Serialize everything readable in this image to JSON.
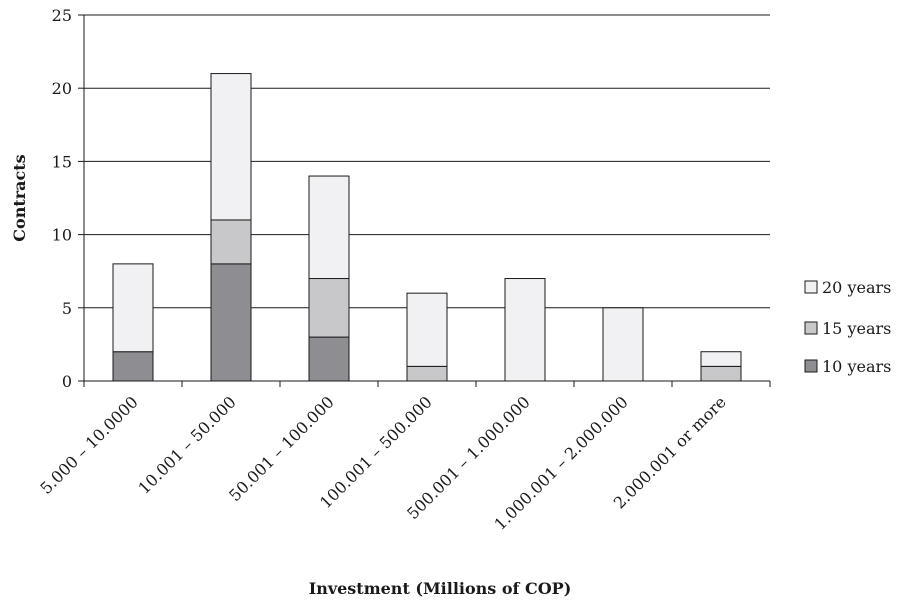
{
  "chart_data": {
    "type": "bar",
    "stacked": true,
    "title": "",
    "xlabel": "Investment (Millions of COP)",
    "ylabel": "Contracts",
    "ylim": [
      0,
      25
    ],
    "yticks": [
      0,
      5,
      10,
      15,
      20,
      25
    ],
    "grid": true,
    "legend_position": "right",
    "categories": [
      "5.000 – 10.0000",
      "10.001 – 50.000",
      "50.001 – 100.000",
      "100.001 – 500.000",
      "500.001 – 1.000.000",
      "1.000.001 – 2.000.000",
      "2.000.001 or more"
    ],
    "series": [
      {
        "name": "10 years",
        "color": "#8e8e92",
        "values": [
          2,
          8,
          3,
          0,
          0,
          0,
          0
        ]
      },
      {
        "name": "15 years",
        "color": "#c8c8ca",
        "values": [
          0,
          3,
          4,
          1,
          0,
          0,
          1
        ]
      },
      {
        "name": "20 years",
        "color": "#f1f1f3",
        "values": [
          6,
          10,
          7,
          5,
          7,
          5,
          1
        ]
      }
    ],
    "legend_order": [
      "20 years",
      "15 years",
      "10 years"
    ]
  }
}
